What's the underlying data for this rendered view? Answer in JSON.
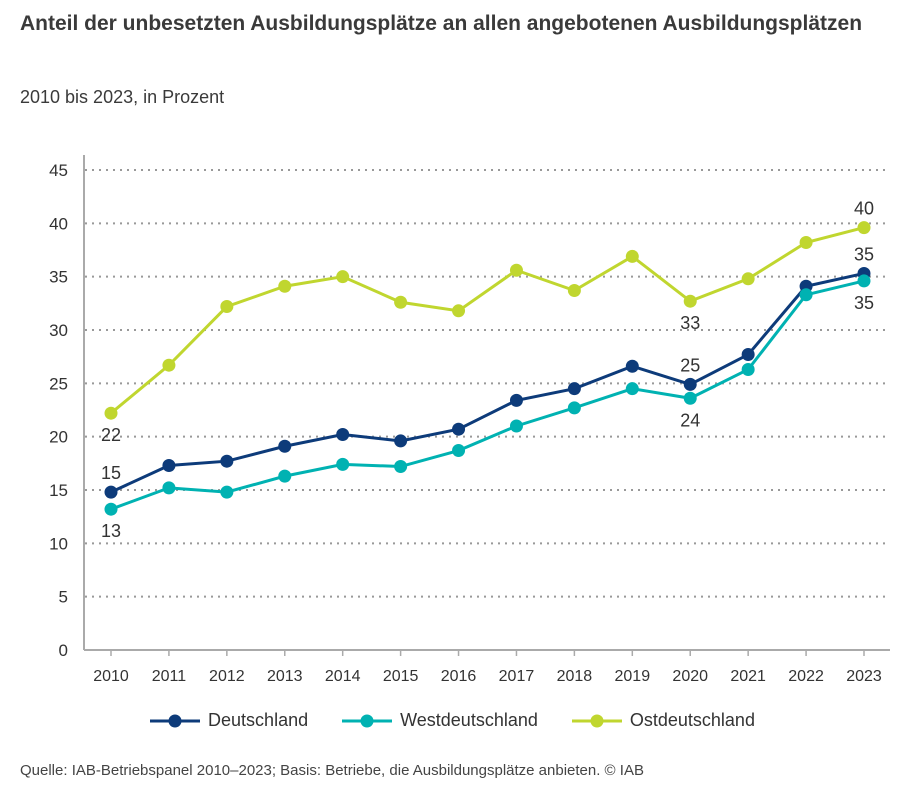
{
  "chart_data": {
    "type": "line",
    "title": "Anteil der unbesetzten Ausbildungsplätze an allen angebotenen Ausbildungsplätzen",
    "subtitle": "2010 bis 2023, in Prozent",
    "x": [
      "2010",
      "2011",
      "2012",
      "2013",
      "2014",
      "2015",
      "2016",
      "2017",
      "2018",
      "2019",
      "2020",
      "2021",
      "2022",
      "2023"
    ],
    "ylim": [
      0,
      45
    ],
    "yticks": [
      "0",
      "5",
      "10",
      "15",
      "20",
      "25",
      "30",
      "35",
      "40",
      "45"
    ],
    "grid": "horizontal dotted",
    "legend_position": "bottom",
    "series": [
      {
        "name": "Deutschland",
        "color": "#0d3b7a",
        "values": [
          14.8,
          17.3,
          17.7,
          19.1,
          20.2,
          19.6,
          20.7,
          23.4,
          24.5,
          26.6,
          24.9,
          27.7,
          34.1,
          35.3
        ],
        "labels": [
          {
            "index": 0,
            "text": "15",
            "pos": "above"
          },
          {
            "index": 10,
            "text": "25",
            "pos": "above"
          },
          {
            "index": 13,
            "text": "35",
            "pos": "above"
          }
        ]
      },
      {
        "name": "Westdeutschland",
        "color": "#00b2b2",
        "values": [
          13.2,
          15.2,
          14.8,
          16.3,
          17.4,
          17.2,
          18.7,
          21.0,
          22.7,
          24.5,
          23.6,
          26.3,
          33.3,
          34.6
        ],
        "labels": [
          {
            "index": 0,
            "text": "13",
            "pos": "below"
          },
          {
            "index": 10,
            "text": "24",
            "pos": "below"
          },
          {
            "index": 13,
            "text": "35",
            "pos": "below"
          }
        ]
      },
      {
        "name": "Ostdeutschland",
        "color": "#c0d62f",
        "values": [
          22.2,
          26.7,
          32.2,
          34.1,
          35.0,
          32.6,
          31.8,
          35.6,
          33.7,
          36.9,
          32.7,
          34.8,
          38.2,
          39.6
        ],
        "labels": [
          {
            "index": 0,
            "text": "22",
            "pos": "below"
          },
          {
            "index": 10,
            "text": "33",
            "pos": "below"
          },
          {
            "index": 13,
            "text": "40",
            "pos": "above"
          }
        ]
      }
    ]
  },
  "source": "Quelle: IAB-Betriebspanel 2010–2023; Basis: Betriebe, die Ausbildungsplätze anbieten.  © IAB"
}
